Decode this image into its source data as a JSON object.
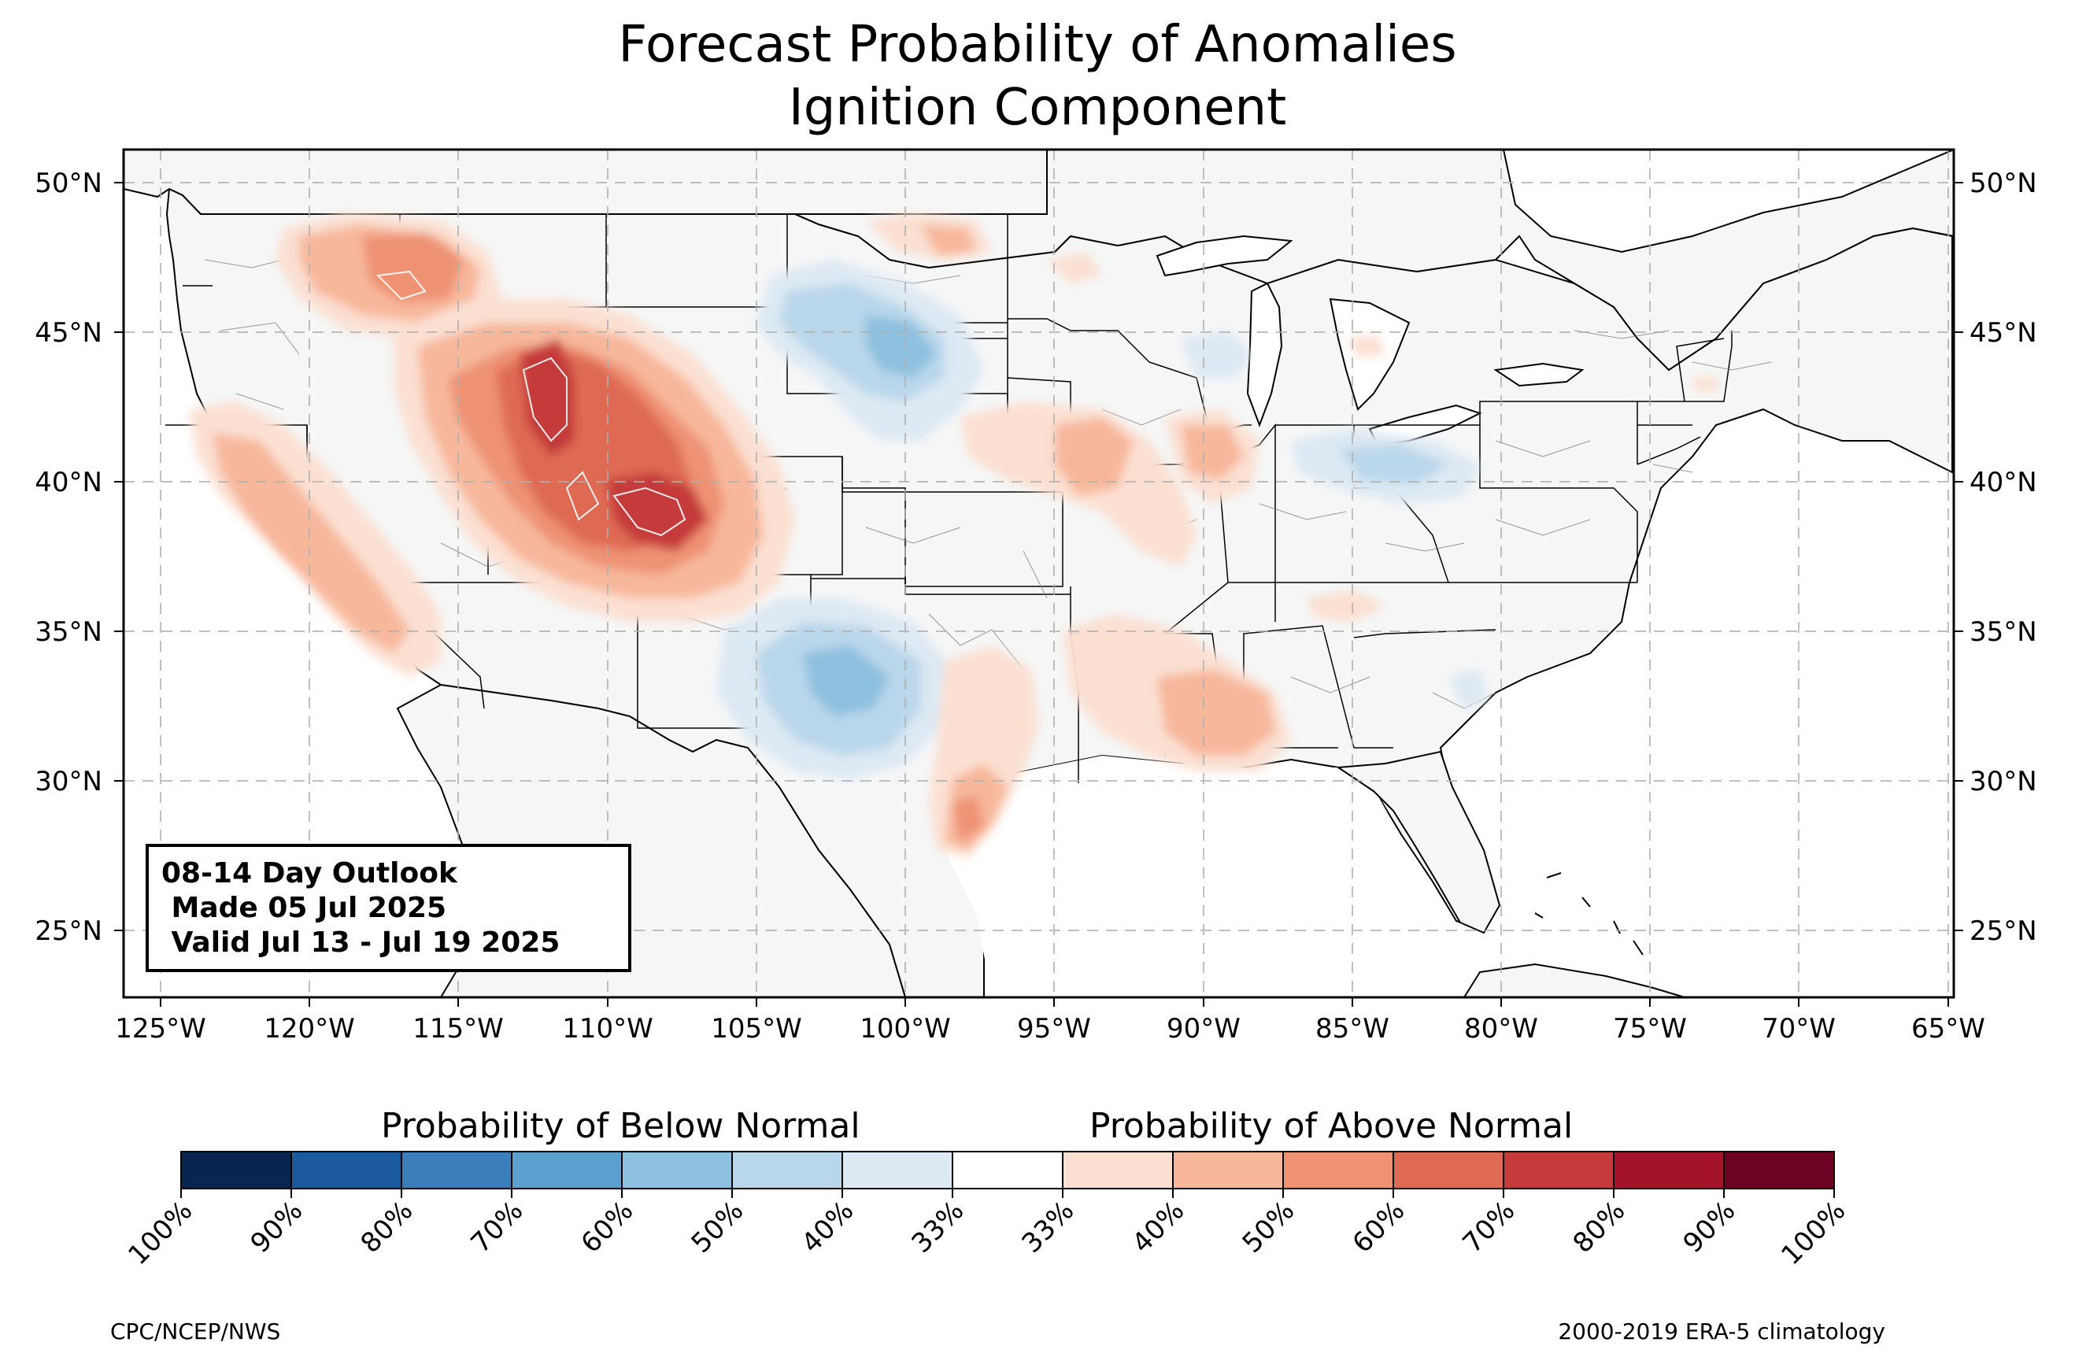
{
  "title": {
    "line1": "Forecast Probability of Anomalies",
    "line2": "Ignition Component"
  },
  "axes": {
    "lat_labels": [
      "50°N",
      "45°N",
      "40°N",
      "35°N",
      "30°N",
      "25°N"
    ],
    "lon_labels": [
      "125°W",
      "120°W",
      "115°W",
      "110°W",
      "105°W",
      "100°W",
      "95°W",
      "90°W",
      "85°W",
      "80°W",
      "75°W",
      "70°W",
      "65°W"
    ]
  },
  "outlook": {
    "line1": "08-14 Day Outlook",
    "line2": " Made 05 Jul 2025",
    "line3": " Valid Jul 13 - Jul 19 2025"
  },
  "colorbar": {
    "below_label": "Probability of Below Normal",
    "above_label": "Probability of Above Normal",
    "colors": [
      "#08254f",
      "#1b5a9c",
      "#3a7fba",
      "#5ca0cf",
      "#8ec0df",
      "#b9d7eb",
      "#dde9f3",
      "#ffffff",
      "#fbe0d2",
      "#f7b79b",
      "#ee9273",
      "#de6a53",
      "#c53a3a",
      "#a3142a",
      "#6c0322"
    ],
    "tick_labels": [
      "100%",
      "90%",
      "80%",
      "70%",
      "60%",
      "50%",
      "40%",
      "33%",
      "33%",
      "40%",
      "50%",
      "60%",
      "70%",
      "80%",
      "90%",
      "100%"
    ]
  },
  "footer": {
    "left": "CPC/NCEP/NWS",
    "right": "2000-2019 ERA-5 climatology"
  }
}
